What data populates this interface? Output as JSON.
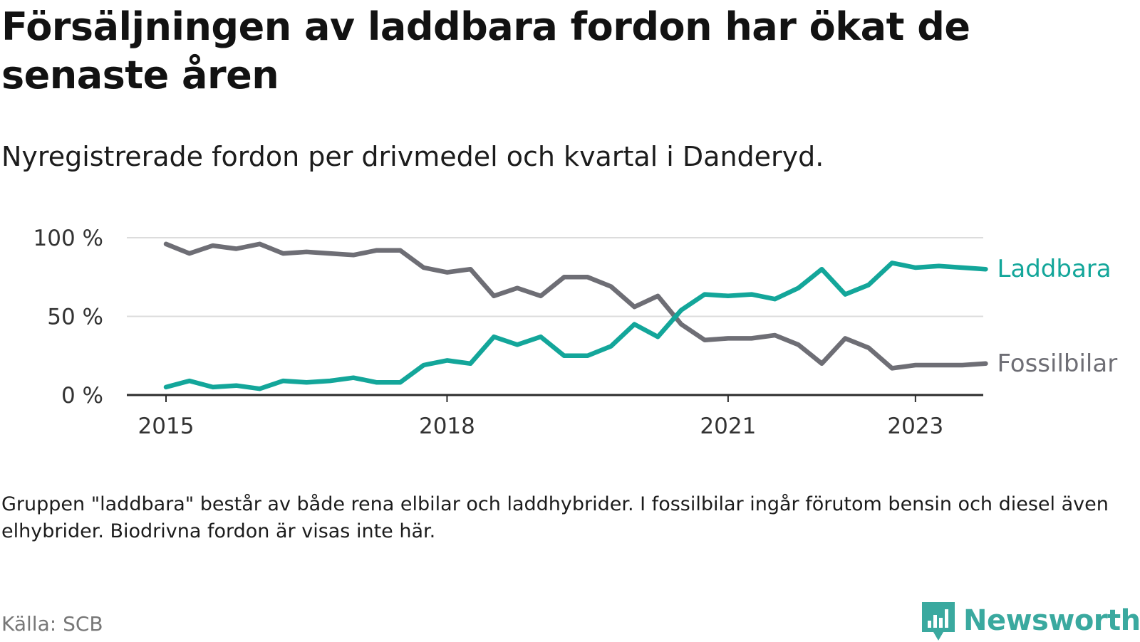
{
  "title": "Försäljningen av laddbara fordon har ökat de senaste åren",
  "subtitle": "Nyregistrerade fordon per drivmedel och kvartal i Danderyd.",
  "note": "Gruppen \"laddbara\" består av både rena elbilar och laddhybrider. I fossilbilar ingår förutom bensin och diesel även elhybrider. Biodrivna fordon är visas inte här.",
  "source": "Källa: SCB",
  "brand": {
    "name": "Newsworthy",
    "color": "#3aa99f"
  },
  "chart_data": {
    "type": "line",
    "x": [
      "2015Q1",
      "2015Q2",
      "2015Q3",
      "2015Q4",
      "2016Q1",
      "2016Q2",
      "2016Q3",
      "2016Q4",
      "2017Q1",
      "2017Q2",
      "2017Q3",
      "2017Q4",
      "2018Q1",
      "2018Q2",
      "2018Q3",
      "2018Q4",
      "2019Q1",
      "2019Q2",
      "2019Q3",
      "2019Q4",
      "2020Q1",
      "2020Q2",
      "2020Q3",
      "2020Q4",
      "2021Q1",
      "2021Q2",
      "2021Q3",
      "2021Q4",
      "2022Q1",
      "2022Q2",
      "2022Q3",
      "2022Q4",
      "2023Q1",
      "2023Q2",
      "2023Q3",
      "2023Q4"
    ],
    "series": [
      {
        "name": "Laddbara",
        "color": "#13a69a",
        "values": [
          5,
          9,
          5,
          6,
          4,
          9,
          8,
          9,
          11,
          8,
          8,
          19,
          22,
          20,
          37,
          32,
          37,
          25,
          25,
          31,
          45,
          37,
          54,
          64,
          63,
          64,
          61,
          68,
          80,
          64,
          70,
          84,
          81,
          82,
          81,
          80
        ]
      },
      {
        "name": "Fossilbilar",
        "color": "#6e6e75",
        "values": [
          96,
          90,
          95,
          93,
          96,
          90,
          91,
          90,
          89,
          92,
          92,
          81,
          78,
          80,
          63,
          68,
          63,
          75,
          75,
          69,
          56,
          63,
          45,
          35,
          36,
          36,
          38,
          32,
          20,
          36,
          30,
          17,
          19,
          19,
          19,
          20
        ]
      }
    ],
    "yticks": [
      {
        "value": 0,
        "label": "0 %"
      },
      {
        "value": 50,
        "label": "50 %"
      },
      {
        "value": 100,
        "label": "100 %"
      }
    ],
    "xticks": [
      {
        "index": 0,
        "label": "2015"
      },
      {
        "index": 12,
        "label": "2018"
      },
      {
        "index": 24,
        "label": "2021"
      },
      {
        "index": 32,
        "label": "2023"
      }
    ],
    "ylim": [
      0,
      100
    ],
    "grid": true,
    "xlabel": "",
    "ylabel": ""
  }
}
